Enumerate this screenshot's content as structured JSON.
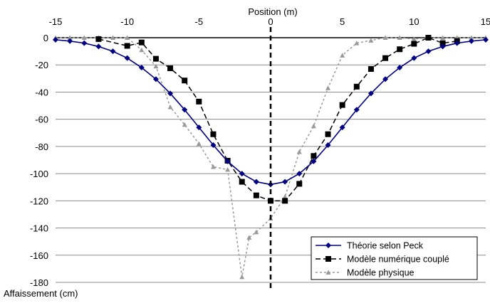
{
  "chart_data": {
    "type": "line",
    "title": "",
    "xlabel": "Position (m)",
    "ylabel": "Affaissement (cm)",
    "xlim": [
      -15,
      15
    ],
    "ylim": [
      -180,
      0
    ],
    "x_ticks": [
      -15,
      -10,
      -5,
      0,
      5,
      10,
      15
    ],
    "y_ticks": [
      0,
      -20,
      -40,
      -60,
      -80,
      -100,
      -120,
      -140,
      -160,
      -180
    ],
    "grid": "horizontal",
    "legend_position": "bottom-right",
    "center_line_x": 0,
    "series": [
      {
        "name": "Théorie selon Peck",
        "color": "#000080",
        "line_style": "solid",
        "marker": "diamond",
        "x": [
          -15,
          -14,
          -13,
          -12,
          -11,
          -10,
          -9,
          -8,
          -7,
          -6,
          -5,
          -4,
          -3,
          -2,
          -1,
          0,
          1,
          2,
          3,
          4,
          5,
          6,
          7,
          8,
          9,
          10,
          11,
          12,
          13,
          14,
          15
        ],
        "y": [
          -1.5,
          -2.5,
          -4,
          -6.5,
          -10,
          -15,
          -22,
          -30.5,
          -41,
          -53,
          -66,
          -79,
          -91,
          -100,
          -106,
          -108,
          -106,
          -100,
          -91,
          -79,
          -66,
          -53,
          -41,
          -30.5,
          -22,
          -15,
          -10,
          -6.5,
          -4,
          -2.5,
          -1.5
        ]
      },
      {
        "name": "Modèle numérique couplé",
        "color": "#000000",
        "line_style": "dashed",
        "marker": "square",
        "x": [
          -12,
          -10,
          -9,
          -8,
          -7,
          -6,
          -5,
          -4,
          -3,
          -2,
          -1,
          0,
          1,
          2,
          3,
          4,
          5,
          6,
          7,
          8,
          9,
          10,
          11,
          12,
          13
        ],
        "y": [
          -1,
          -6,
          -3.5,
          -15.5,
          -22.5,
          -31.5,
          -47,
          -71,
          -90.5,
          -106,
          -116,
          -120,
          -120,
          -107.5,
          -87,
          -71,
          -49.5,
          -36,
          -23,
          -15,
          -8.5,
          -4.5,
          0,
          -4,
          -2.5
        ]
      },
      {
        "name": "Modèle physique",
        "color": "#999999",
        "line_style": "dotted",
        "marker": "triangle",
        "x": [
          -15,
          -14,
          -13,
          -12,
          -11,
          -10,
          -9,
          -8,
          -7,
          -6,
          -5,
          -4,
          -3,
          -2,
          -1.5,
          -1,
          0,
          1,
          2,
          3,
          4,
          5,
          6,
          7,
          8,
          9,
          10,
          11,
          12,
          13,
          14,
          15
        ],
        "y": [
          0,
          0,
          0,
          0,
          0,
          0,
          -9,
          -21,
          -51,
          -64,
          -78,
          -95,
          -97,
          -176,
          -147,
          -143,
          -133,
          -117,
          -84,
          -65,
          -37,
          -13,
          -4,
          -2,
          0,
          0,
          -1,
          0,
          0,
          0,
          0,
          0
        ]
      }
    ]
  }
}
